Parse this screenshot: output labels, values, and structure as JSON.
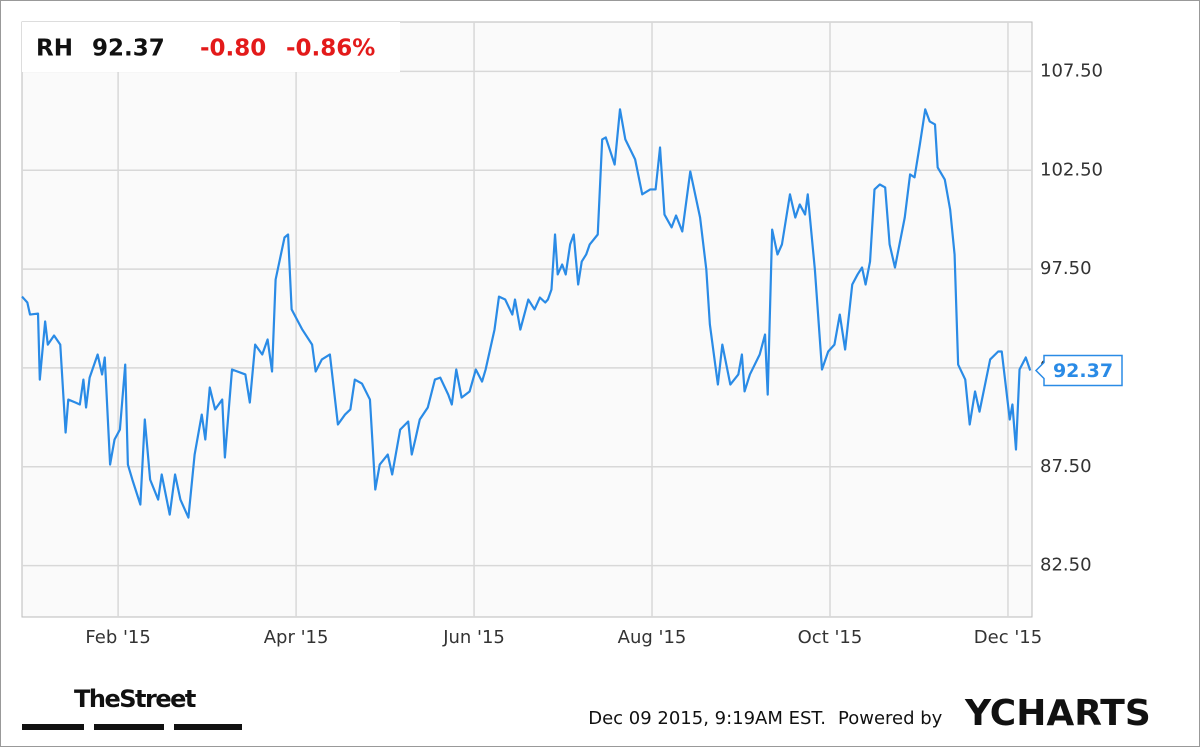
{
  "chart_data": {
    "type": "line",
    "header": {
      "ticker": "RH",
      "price": "92.37",
      "change": "-0.80",
      "change_pct": "-0.86%"
    },
    "color": "#2a8be6",
    "x": [
      0.92,
      0.98,
      1.01,
      1.1,
      1.12,
      1.18,
      1.21,
      1.28,
      1.35,
      1.41,
      1.44,
      1.52,
      1.57,
      1.61,
      1.64,
      1.68,
      1.77,
      1.82,
      1.85,
      1.91,
      1.96,
      2.02,
      2.08,
      2.11,
      2.16,
      2.25,
      2.3,
      2.36,
      2.45,
      2.49,
      2.58,
      2.64,
      2.7,
      2.79,
      2.86,
      2.94,
      2.98,
      3.03,
      3.09,
      3.17,
      3.2,
      3.28,
      3.43,
      3.48,
      3.54,
      3.62,
      3.68,
      3.73,
      3.77,
      3.87,
      3.91,
      3.95,
      4.07,
      4.18,
      4.22,
      4.29,
      4.38,
      4.47,
      4.55,
      4.61,
      4.66,
      4.74,
      4.83,
      4.89,
      4.94,
      5.03,
      5.08,
      5.17,
      5.26,
      5.3,
      5.34,
      5.39,
      5.48,
      5.56,
      5.62,
      5.71,
      5.75,
      5.8,
      5.86,
      5.95,
      6.02,
      6.09,
      6.13,
      6.23,
      6.28,
      6.35,
      6.43,
      6.46,
      6.52,
      6.61,
      6.68,
      6.74,
      6.8,
      6.83,
      6.87,
      6.91,
      6.94,
      6.99,
      7.03,
      7.08,
      7.12,
      7.17,
      7.21,
      7.26,
      7.3,
      7.39,
      7.44,
      7.48,
      7.58,
      7.64,
      7.7,
      7.81,
      7.89,
      7.98,
      8.04,
      8.09,
      8.14,
      8.22,
      8.27,
      8.34,
      8.43,
      8.54,
      8.61,
      8.65,
      8.74,
      8.79,
      8.88,
      8.97,
      9.01,
      9.04,
      9.1,
      9.21,
      9.27,
      9.3,
      9.35,
      9.41,
      9.46,
      9.55,
      9.61,
      9.66,
      9.72,
      9.75,
      9.83,
      9.91,
      9.98,
      10.05,
      10.11,
      10.17,
      10.25,
      10.31,
      10.36,
      10.4,
      10.45,
      10.5,
      10.56,
      10.62,
      10.67,
      10.73,
      10.84,
      10.9,
      10.95,
      11.01,
      11.07,
      11.12,
      11.18,
      11.21,
      11.29,
      11.35,
      11.4,
      11.44,
      11.52,
      11.57,
      11.63,
      11.68,
      11.8,
      11.89,
      11.93,
      12.02,
      12.05,
      12.09,
      12.13,
      12.2,
      12.25
    ],
    "values": [
      96.11,
      95.81,
      95.2,
      95.25,
      91.91,
      94.85,
      93.68,
      94.14,
      93.68,
      89.23,
      90.9,
      90.75,
      90.65,
      91.91,
      90.5,
      92.01,
      93.18,
      92.17,
      93.03,
      87.61,
      88.88,
      89.38,
      92.67,
      87.61,
      86.85,
      85.59,
      89.89,
      86.85,
      85.84,
      87.11,
      85.08,
      87.11,
      85.84,
      84.93,
      88.12,
      90.14,
      88.88,
      91.51,
      90.4,
      90.9,
      87.97,
      92.42,
      92.17,
      90.75,
      93.68,
      93.18,
      93.94,
      92.32,
      96.97,
      99.1,
      99.25,
      95.46,
      94.44,
      93.68,
      92.32,
      92.93,
      93.18,
      89.64,
      90.14,
      90.4,
      91.91,
      91.71,
      90.9,
      86.35,
      87.61,
      88.12,
      87.11,
      89.38,
      89.79,
      88.12,
      88.88,
      89.89,
      90.5,
      91.91,
      92.01,
      91.15,
      90.65,
      92.42,
      91.0,
      91.31,
      92.42,
      91.81,
      92.42,
      94.44,
      96.11,
      95.96,
      95.2,
      95.96,
      94.44,
      95.96,
      95.46,
      96.06,
      95.81,
      95.96,
      96.47,
      99.25,
      97.23,
      97.73,
      97.23,
      98.75,
      99.25,
      96.72,
      97.88,
      98.24,
      98.75,
      99.25,
      104.06,
      104.16,
      102.79,
      105.58,
      104.06,
      103.05,
      101.28,
      101.53,
      101.53,
      103.65,
      100.26,
      99.61,
      100.21,
      99.4,
      102.44,
      100.11,
      97.48,
      94.7,
      91.66,
      93.68,
      91.66,
      92.17,
      93.18,
      91.31,
      92.17,
      93.18,
      94.19,
      91.15,
      99.5,
      98.24,
      98.75,
      101.28,
      100.11,
      100.77,
      100.26,
      101.28,
      97.48,
      92.42,
      93.33,
      93.68,
      95.2,
      93.43,
      96.72,
      97.23,
      97.58,
      96.72,
      97.88,
      101.53,
      101.78,
      101.63,
      98.75,
      97.58,
      100.11,
      102.29,
      102.14,
      103.81,
      105.58,
      104.97,
      104.82,
      102.64,
      102.03,
      100.52,
      98.24,
      92.67,
      91.91,
      89.64,
      91.31,
      90.29,
      92.93,
      93.33,
      93.33,
      89.89,
      90.65,
      88.37,
      92.42,
      93.03,
      92.37
    ],
    "xlim": [
      0.92,
      12.27
    ],
    "xticks": [
      {
        "value": 2,
        "label": "Feb '15"
      },
      {
        "value": 4,
        "label": "Apr '15"
      },
      {
        "value": 6,
        "label": "Jun '15"
      },
      {
        "value": 8,
        "label": "Aug '15"
      },
      {
        "value": 10,
        "label": "Oct '15"
      },
      {
        "value": 12,
        "label": "Dec '15"
      }
    ],
    "ylim": [
      79.9,
      110.0
    ],
    "yticks": [
      {
        "value": 82.5,
        "label": "82.50"
      },
      {
        "value": 87.5,
        "label": "87.50"
      },
      {
        "value": 92.5,
        "label": "92.50"
      },
      {
        "value": 97.5,
        "label": "97.50"
      },
      {
        "value": 102.5,
        "label": "102.50"
      },
      {
        "value": 107.5,
        "label": "107.50"
      }
    ],
    "grid": true,
    "footer": {
      "source": "TheStreet",
      "timestamp": "Dec 09 2015, 9:19AM EST.",
      "powered": "Powered by",
      "brand": "YCHARTS"
    }
  }
}
